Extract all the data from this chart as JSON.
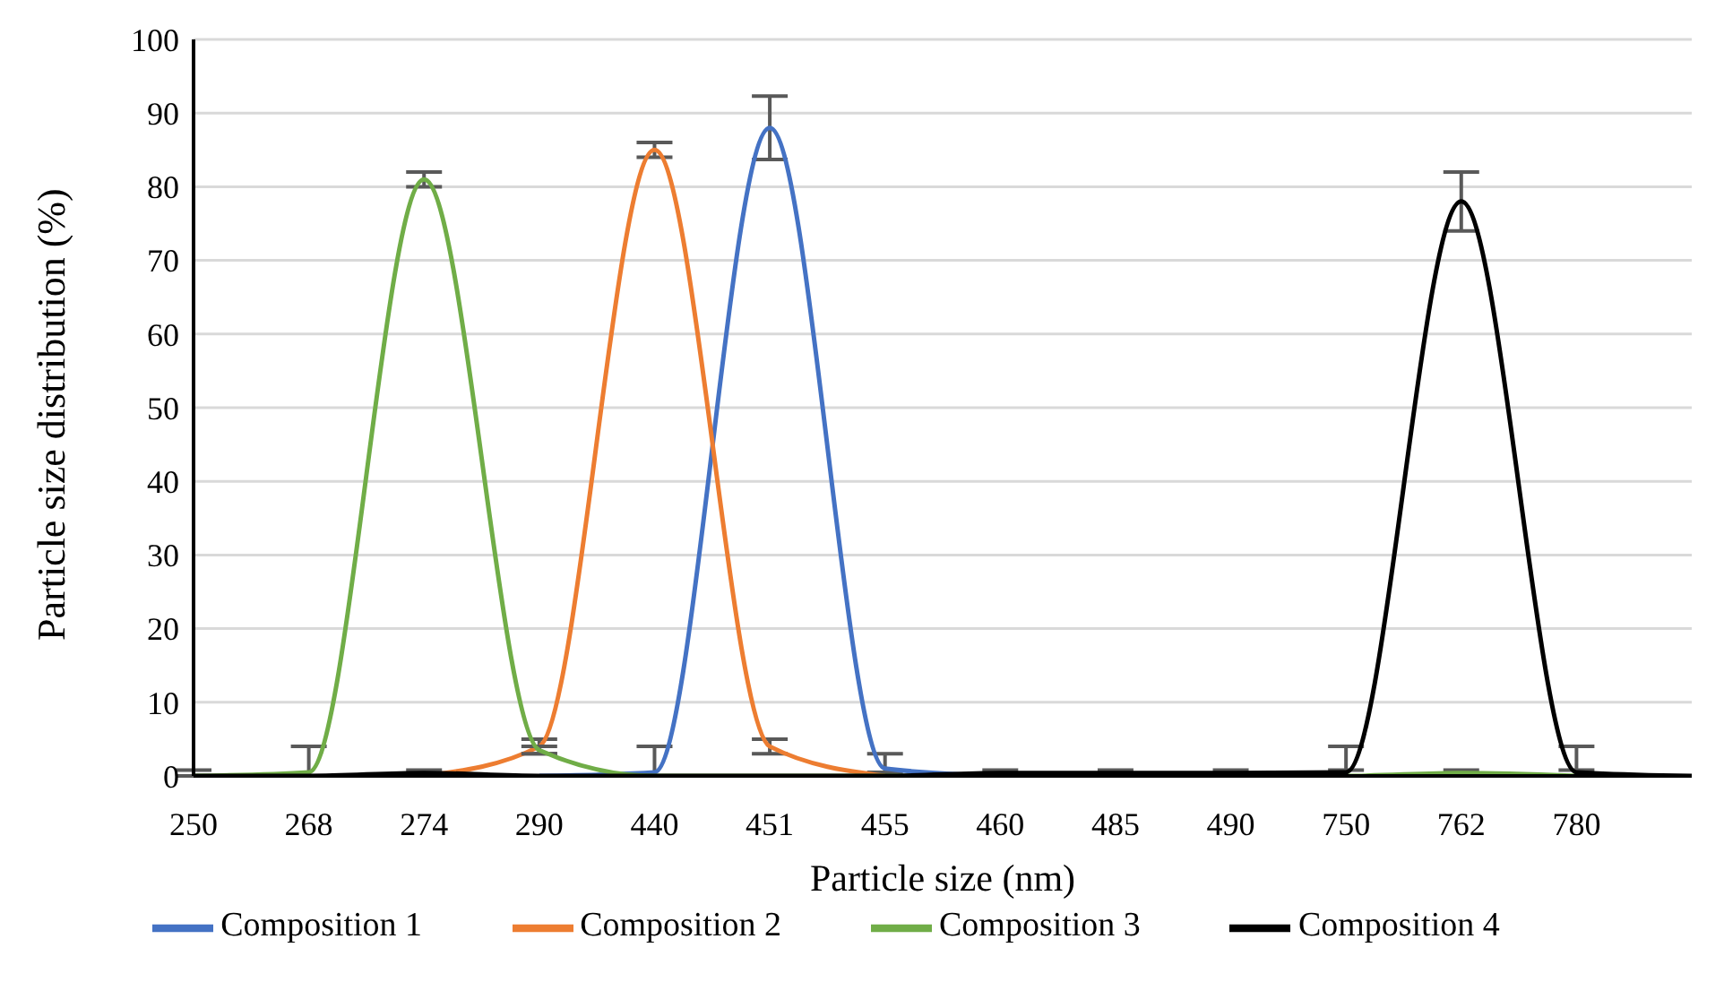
{
  "chart_data": {
    "type": "line",
    "xlabel": "Particle size (nm)",
    "ylabel": "Particle size distribution (%)",
    "categories": [
      "250",
      "268",
      "274",
      "290",
      "440",
      "451",
      "455",
      "460",
      "485",
      "490",
      "750",
      "762",
      "780",
      null
    ],
    "series": [
      {
        "name": "Composition 1",
        "color": "#4472c4",
        "values": [
          null,
          null,
          null,
          0,
          0.5,
          88,
          1,
          0,
          null,
          null,
          null,
          null,
          null,
          null
        ],
        "errors": [
          null,
          null,
          null,
          null,
          [
            0,
            4
          ],
          4.3,
          [
            0.5,
            3
          ],
          null,
          null,
          null,
          null,
          null,
          null,
          null
        ]
      },
      {
        "name": "Composition 2",
        "color": "#ed7d31",
        "values": [
          null,
          null,
          0,
          4,
          85,
          4,
          0,
          null,
          null,
          null,
          null,
          null,
          null,
          null
        ],
        "errors": [
          null,
          null,
          null,
          1,
          1,
          1,
          null,
          null,
          null,
          null,
          null,
          null,
          null,
          null
        ]
      },
      {
        "name": "Composition 3",
        "color": "#70ad47",
        "values": [
          0,
          0.5,
          81,
          3.5,
          0,
          0,
          0,
          0,
          0,
          0,
          0,
          0.4,
          0,
          null
        ],
        "errors": [
          null,
          [
            0,
            4
          ],
          1,
          0.5,
          null,
          null,
          null,
          null,
          null,
          null,
          [
            0,
            0.8
          ],
          0.4,
          [
            0,
            0.8
          ],
          null
        ]
      },
      {
        "name": "Composition 4",
        "color": "#000000",
        "values": [
          0,
          0,
          0.4,
          0,
          0,
          0,
          0,
          0.4,
          0.4,
          0.4,
          0.5,
          78,
          0.5,
          0
        ],
        "errors": [
          [
            0,
            0.8
          ],
          null,
          0.4,
          null,
          null,
          null,
          null,
          0.4,
          0.4,
          0.4,
          [
            0,
            4
          ],
          4,
          [
            0,
            4
          ],
          null
        ]
      }
    ],
    "ylim": [
      0,
      100
    ],
    "yticks": [
      0,
      10,
      20,
      30,
      40,
      50,
      60,
      70,
      80,
      90,
      100
    ],
    "grid": "y",
    "legend": "bottom",
    "marker": "none",
    "line_style": "solid"
  }
}
